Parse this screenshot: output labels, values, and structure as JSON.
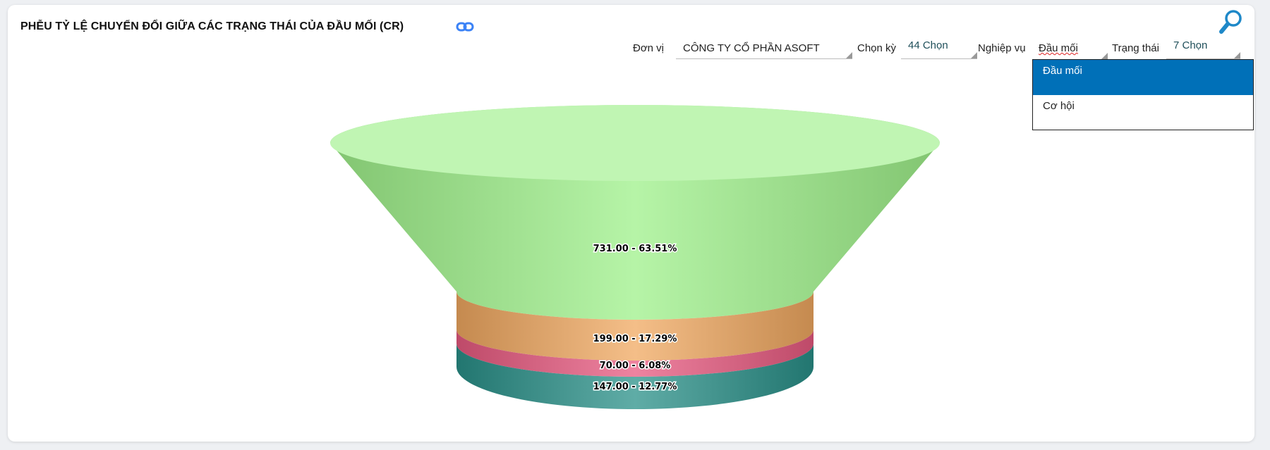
{
  "header": {
    "title": "PHỄU TỶ LỆ CHUYỂN ĐỔI GIỮA CÁC TRẠNG THÁI CỦA ĐẦU MỐI (CR)",
    "link_icon": "link-icon",
    "search_icon": "search-icon"
  },
  "filters": {
    "unit_label": "Đơn vị",
    "unit_value": "CÔNG TY CỔ PHẦN ASOFT",
    "period_label": "Chọn kỳ",
    "period_value": "44 Chọn",
    "business_label": "Nghiệp vụ",
    "business_value": "Đầu mối",
    "status_label": "Trạng thái",
    "status_value": "7 Chọn"
  },
  "business_dropdown": {
    "options": [
      "Đầu mối",
      "Cơ hội"
    ],
    "selected": "Đầu mối",
    "highlight_color": "#0070b8"
  },
  "chart_data": {
    "type": "funnel",
    "style": "3d",
    "segments": [
      {
        "value": 731,
        "percent": 63.51,
        "label": "731.00 - 63.51%",
        "color": "#9ef08a"
      },
      {
        "value": 199,
        "percent": 17.29,
        "label": "199.00 - 17.29%",
        "color": "#f0a860"
      },
      {
        "value": 70,
        "percent": 6.08,
        "label": "70.00 - 6.08%",
        "color": "#e85a80"
      },
      {
        "value": 147,
        "percent": 12.77,
        "label": "147.00 - 12.77%",
        "color": "#2a9088"
      }
    ]
  }
}
